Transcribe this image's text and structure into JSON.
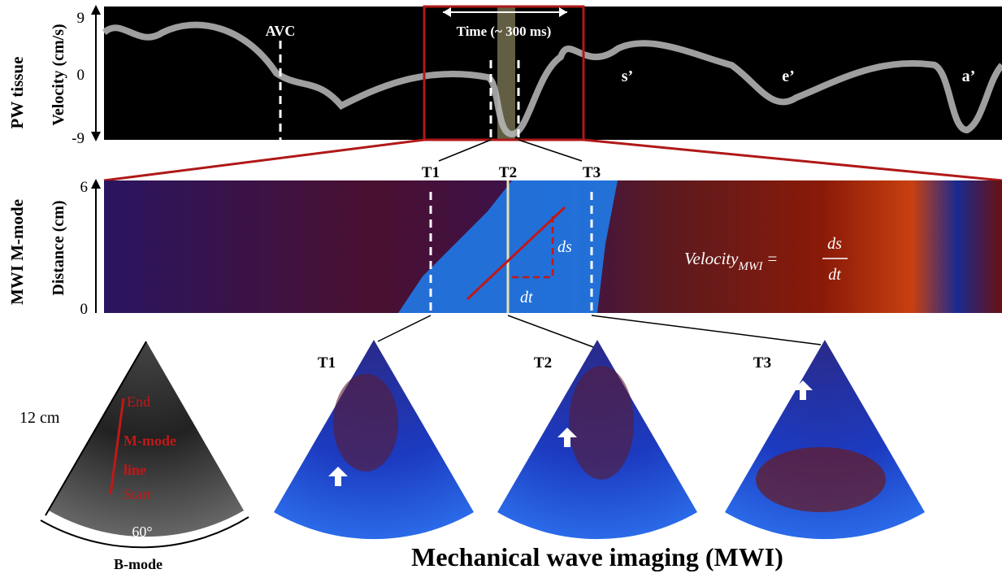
{
  "pw_panel": {
    "row_label": "PW tissue",
    "axis_label": "Velocity (cm/s)",
    "ticks": [
      "9",
      "0",
      "-9"
    ],
    "annotations": {
      "avc": "AVC",
      "time_window": "Time (~ 300 ms)",
      "s_prime": "s’",
      "e_prime": "e’",
      "a_prime": "a’"
    }
  },
  "mmode_panel": {
    "row_label": "MWI M-mode",
    "axis_label": "Distance (cm)",
    "ticks": [
      "6",
      "0"
    ],
    "time_markers": [
      "T1",
      "T2",
      "T3"
    ],
    "ds": "ds",
    "dt": "dt",
    "formula": {
      "lhs": "Velocity",
      "subscript": "MWI",
      "equals": "=",
      "numerator": "ds",
      "denominator": "dt"
    }
  },
  "bmode_panel": {
    "depth": "12 cm",
    "end": "End",
    "line_label_1": "M-mode",
    "line_label_2": "line",
    "start": "Start",
    "angle": "60°",
    "caption": "B-mode"
  },
  "mwi_panel": {
    "frame_labels": [
      "T1",
      "T2",
      "T3"
    ],
    "caption": "Mechanical wave imaging (MWI)"
  }
}
